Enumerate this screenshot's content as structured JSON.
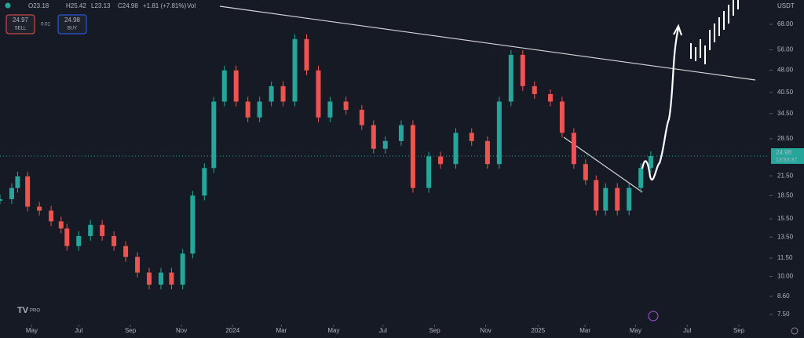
{
  "header": {
    "open": "O23.18",
    "high": "H25.42",
    "low": "L23.13",
    "close": "C24.98",
    "change": "+1.81 (+7.81%)",
    "volume": "Vol",
    "sell_price": "24.97",
    "sell_label": "SELL",
    "spread": "0.01",
    "buy_price": "24.98",
    "buy_label": "BUY",
    "currency": "USDT",
    "logo": "PRO"
  },
  "chart_data": {
    "type": "candlestick",
    "log": true,
    "up_color": "#26a69a",
    "down_color": "#ef5350",
    "x": [
      0,
      2,
      3,
      4.7,
      6.7,
      8.7,
      10.4,
      11.4,
      13.4,
      15.4,
      17.4,
      19.4,
      21.4,
      23.4,
      25.4,
      27.4,
      29.2,
      31.1,
      32.8,
      34.8,
      36.4,
      38.2,
      40.2,
      42.2,
      44.2,
      46.2,
      48.2,
      50.2,
      52.2,
      54.2,
      56.2,
      58.9,
      61.6,
      63.6,
      65.6,
      68.3,
      70.3,
      73.0,
      75.0,
      77.6,
      80.3,
      83.0,
      85.0,
      87.0,
      89.0,
      91.0,
      93.7,
      95.7,
      97.7,
      99.7,
      101.5,
      103.1,
      105.1,
      107.1,
      109.1,
      110.8
    ],
    "values": [
      18.0,
      19.6,
      21.4,
      17.0,
      16.5,
      15.2,
      14.4,
      12.6,
      13.6,
      14.8,
      13.6,
      12.6,
      11.6,
      10.3,
      9.4,
      10.3,
      9.4,
      11.9,
      18.5,
      22.8,
      37.8,
      47.9,
      37.8,
      33.5,
      37.8,
      42.5,
      37.8,
      60.8,
      47.9,
      33.5,
      37.8,
      35.5,
      31.6,
      26.4,
      28.0,
      31.6,
      19.6,
      24.9,
      23.5,
      29.8,
      28.0,
      23.5,
      37.8,
      53.9,
      42.5,
      40.0,
      37.8,
      29.8,
      23.5,
      20.8,
      16.5,
      19.6,
      16.5,
      19.6,
      22.8,
      24.98
    ],
    "xlim": [
      0,
      131
    ],
    "ylim": [
      7.1,
      81.8
    ],
    "xticks": [
      {
        "value": 5.4,
        "label": "May"
      },
      {
        "value": 13.4,
        "label": "Jul"
      },
      {
        "value": 22.2,
        "label": "Sep"
      },
      {
        "value": 30.9,
        "label": "Nov"
      },
      {
        "value": 39.6,
        "label": "2024"
      },
      {
        "value": 47.9,
        "label": "Mar"
      },
      {
        "value": 56.8,
        "label": "May"
      },
      {
        "value": 65.2,
        "label": "Jul"
      },
      {
        "value": 74,
        "label": "Sep"
      },
      {
        "value": 82.7,
        "label": "Nov"
      },
      {
        "value": 91.6,
        "label": "2025"
      },
      {
        "value": 99.6,
        "label": "Mar"
      },
      {
        "value": 108.2,
        "label": "May"
      },
      {
        "value": 117,
        "label": "Jul"
      },
      {
        "value": 125.8,
        "label": "Sep"
      }
    ],
    "yticks": [
      {
        "value": 7.5,
        "label": "7.50"
      },
      {
        "value": 8.6,
        "label": "8.60"
      },
      {
        "value": 10,
        "label": "10.00"
      },
      {
        "value": 11.5,
        "label": "11.50"
      },
      {
        "value": 13.5,
        "label": "13.50"
      },
      {
        "value": 15.5,
        "label": "15.50"
      },
      {
        "value": 18.5,
        "label": "18.50"
      },
      {
        "value": 21.5,
        "label": "21.50"
      },
      {
        "value": 28.5,
        "label": "28.50"
      },
      {
        "value": 34.5,
        "label": "34.50"
      },
      {
        "value": 40.5,
        "label": "40.50"
      },
      {
        "value": 48,
        "label": "48.00"
      },
      {
        "value": 56,
        "label": "56.00"
      },
      {
        "value": 68,
        "label": "68.00"
      }
    ],
    "last_price": {
      "value": 24.98,
      "label": "24.98"
    },
    "countdown": "13:53:37"
  }
}
